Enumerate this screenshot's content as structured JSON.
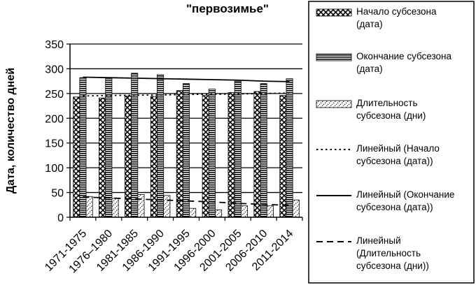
{
  "chart_data": {
    "type": "bar",
    "title": "\"первозимье\"",
    "ylabel": "Дата, количество дней",
    "xlabel": "",
    "ylim": [
      0,
      350
    ],
    "yticks": [
      0,
      50,
      100,
      150,
      200,
      250,
      300,
      350
    ],
    "grid": true,
    "legend_position": "right",
    "categories": [
      "1971-1975",
      "1976–1980",
      "1981-1985",
      "1986-1990",
      "1991-1995",
      "1996-2000",
      "2001-2005",
      "2006-2010",
      "2011-2014"
    ],
    "series": [
      {
        "name": "Начало субсезона (дата)",
        "pattern": "crosshatch",
        "values": [
          243,
          241,
          245,
          244,
          256,
          246,
          252,
          254,
          246
        ]
      },
      {
        "name": "Окончание субсезона (дата)",
        "pattern": "horizontal-lines",
        "values": [
          282,
          280,
          291,
          288,
          270,
          259,
          275,
          270,
          280
        ]
      },
      {
        "name": "Длительность субсезона (дни)",
        "pattern": "diagonal-dots",
        "values": [
          42,
          38,
          46,
          44,
          18,
          15,
          23,
          23,
          35
        ]
      }
    ],
    "trendlines": [
      {
        "name": "Линейный (Начало субсезона (дата))",
        "style": "dotted",
        "values": [
          245,
          246,
          246.5,
          247,
          248,
          248.5,
          249,
          250,
          251
        ]
      },
      {
        "name": "Линейный (Окончание субсезона (дата))",
        "style": "solid",
        "values": [
          283,
          282,
          281,
          280,
          279,
          278,
          277,
          275,
          274
        ]
      },
      {
        "name": "Линейный (Длительность субсезона (дни))",
        "style": "dashed",
        "values": [
          41,
          39,
          37,
          35,
          33,
          31,
          28,
          26,
          24
        ]
      }
    ]
  }
}
